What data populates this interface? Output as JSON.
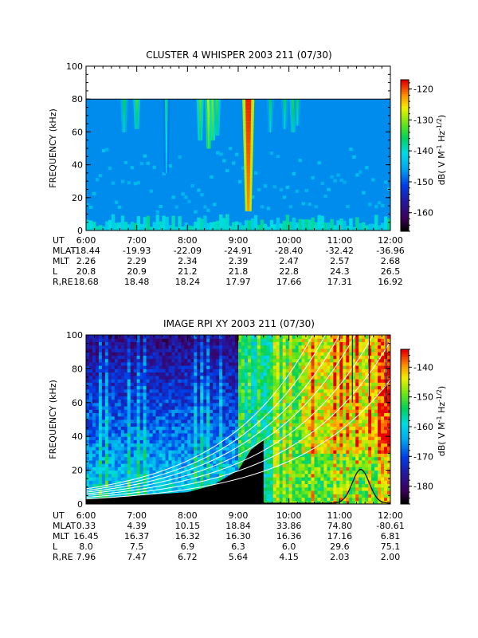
{
  "chart_data": [
    {
      "type": "heatmap",
      "title": "CLUSTER 4 WHISPER 2003 211 (07/30)",
      "ylabel": "FREQUENCY (kHz)",
      "ylim": [
        0,
        100
      ],
      "yticks": [
        "0",
        "20",
        "40",
        "60",
        "80",
        "100"
      ],
      "x_ticks": [
        "6:00",
        "7:00",
        "8:00",
        "9:00",
        "10:00",
        "11:00",
        "12:00"
      ],
      "colorbar": {
        "label": "dB( V M-1 Hz-1/2)",
        "range": [
          -166,
          -117
        ],
        "ticks": [
          "-120",
          "-130",
          "-140",
          "-150",
          "-160"
        ]
      },
      "data_ceiling_khz": 80,
      "background_db": -147,
      "emission_bursts": [
        {
          "time": "6:45",
          "f_low_khz": 60,
          "level_db": -135
        },
        {
          "time": "7:00",
          "f_low_khz": 62,
          "level_db": -133
        },
        {
          "time": "7:35",
          "f_low_khz": 35,
          "level_db": -138
        },
        {
          "time": "8:15",
          "f_low_khz": 55,
          "level_db": -132
        },
        {
          "time": "8:25",
          "f_low_khz": 50,
          "level_db": -128
        },
        {
          "time": "8:30",
          "f_low_khz": 55,
          "level_db": -130
        },
        {
          "time": "8:35",
          "f_low_khz": 58,
          "level_db": -133
        },
        {
          "time": "9:12",
          "f_low_khz": 12,
          "level_db": -118
        },
        {
          "time": "9:38",
          "f_low_khz": 60,
          "level_db": -136
        },
        {
          "time": "9:55",
          "f_low_khz": 62,
          "level_db": -136
        },
        {
          "time": "10:05",
          "f_low_khz": 60,
          "level_db": -134
        },
        {
          "time": "10:10",
          "f_low_khz": 64,
          "level_db": -136
        }
      ],
      "ephemeris": {
        "rows": [
          {
            "label": "UT",
            "values": [
              "6:00",
              "7:00",
              "8:00",
              "9:00",
              "10:00",
              "11:00",
              "12:00"
            ]
          },
          {
            "label": "MLAT",
            "values": [
              "-18.44",
              "-19.93",
              "-22.09",
              "-24.91",
              "-28.40",
              "-32.42",
              "-36.96"
            ]
          },
          {
            "label": "MLT",
            "values": [
              "2.26",
              "2.29",
              "2.34",
              "2.39",
              "2.47",
              "2.57",
              "2.68"
            ]
          },
          {
            "label": "L",
            "values": [
              "20.8",
              "20.9",
              "21.2",
              "21.8",
              "22.8",
              "24.3",
              "26.5"
            ]
          },
          {
            "label": "R,RE",
            "values": [
              "18.68",
              "18.48",
              "18.24",
              "17.97",
              "17.66",
              "17.31",
              "16.92"
            ]
          }
        ]
      }
    },
    {
      "type": "heatmap",
      "title": "IMAGE RPI XY 2003 211 (07/30)",
      "ylabel": "FREQUENCY (kHz)",
      "ylim": [
        0,
        100
      ],
      "yticks": [
        "0",
        "20",
        "40",
        "60",
        "80",
        "100"
      ],
      "x_ticks": [
        "6:00",
        "7:00",
        "8:00",
        "9:00",
        "10:00",
        "11:00",
        "12:00"
      ],
      "colorbar": {
        "label": "dB( V M-1 Hz-1/2)",
        "range": [
          -186,
          -134
        ],
        "ticks": [
          "-140",
          "-150",
          "-160",
          "-170",
          "-180"
        ]
      },
      "black_cutoff_khz": [
        {
          "time": "6:00",
          "f": 3
        },
        {
          "time": "7:00",
          "f": 5
        },
        {
          "time": "8:00",
          "f": 7
        },
        {
          "time": "8:30",
          "f": 11
        },
        {
          "time": "9:00",
          "f": 20
        },
        {
          "time": "9:15",
          "f": 32
        },
        {
          "time": "9:30",
          "f": 38
        }
      ],
      "white_curves_khz_at_start": [
        3,
        4,
        5,
        6,
        7,
        8,
        9
      ],
      "black_curve_peak": {
        "time": "11:25",
        "f": 20
      },
      "ephemeris": {
        "rows": [
          {
            "label": "UT",
            "values": [
              "6:00",
              "7:00",
              "8:00",
              "9:00",
              "10:00",
              "11:00",
              "12:00"
            ]
          },
          {
            "label": "MLAT",
            "values": [
              "0.33",
              "4.39",
              "10.15",
              "18.84",
              "33.86",
              "74.80",
              "-80.61"
            ]
          },
          {
            "label": "MLT",
            "values": [
              "16.45",
              "16.37",
              "16.32",
              "16.30",
              "16.36",
              "17.16",
              "6.81"
            ]
          },
          {
            "label": "L",
            "values": [
              "8.0",
              "7.5",
              "6.9",
              "6.3",
              "6.0",
              "29.6",
              "75.1"
            ]
          },
          {
            "label": "R,RE",
            "values": [
              "7.96",
              "7.47",
              "6.72",
              "5.64",
              "4.15",
              "2.03",
              "2.00"
            ]
          }
        ]
      }
    }
  ]
}
